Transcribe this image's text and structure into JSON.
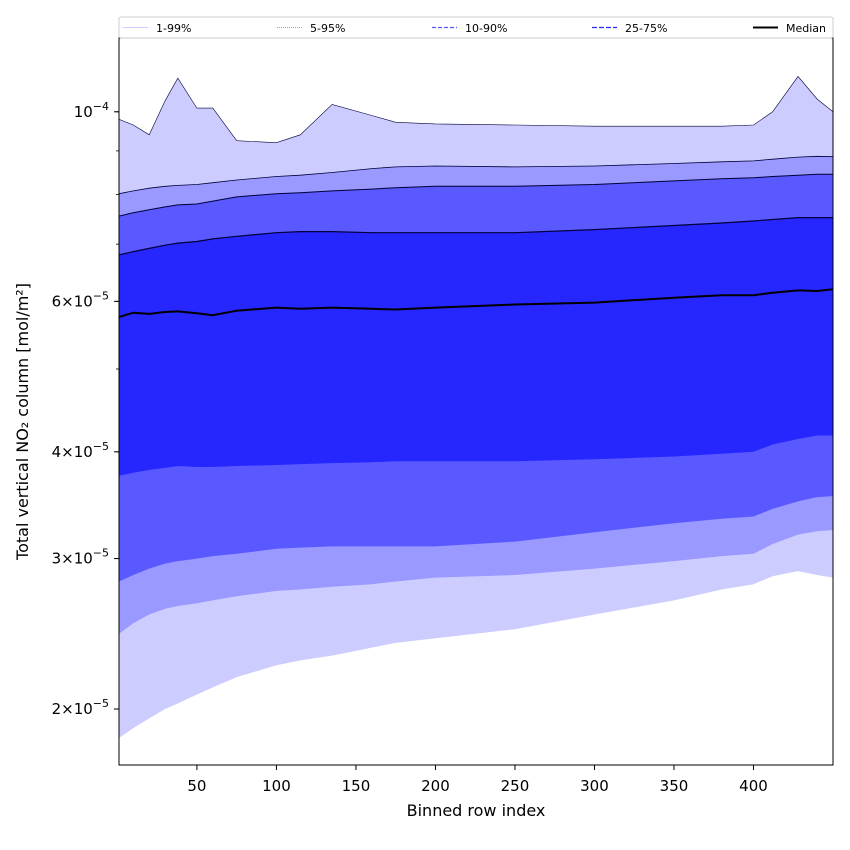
{
  "chart_data": {
    "type": "area",
    "xlabel": "Binned row index",
    "ylabel": "Total vertical NO₂ column [mol/m²]",
    "yscale": "log",
    "xlim": [
      1,
      450
    ],
    "ylim": [
      1.72e-05,
      0.000122
    ],
    "x_ticks": [
      50,
      100,
      150,
      200,
      250,
      300,
      350,
      400
    ],
    "y_ticks": [
      {
        "value": 0.0001,
        "mant": "",
        "exp": "−4"
      },
      {
        "value": 6e-05,
        "mant": "6",
        "exp": "−5"
      },
      {
        "value": 4e-05,
        "mant": "4",
        "exp": "−5"
      },
      {
        "value": 3e-05,
        "mant": "3",
        "exp": "−5"
      },
      {
        "value": 2e-05,
        "mant": "2",
        "exp": "−5"
      }
    ],
    "legend": {
      "placement": "top",
      "entries": [
        "1-99%",
        "5-95%",
        "10-90%",
        "25-75%",
        "Median"
      ]
    },
    "x": [
      1,
      10,
      20,
      30,
      38,
      50,
      60,
      75,
      100,
      115,
      135,
      160,
      175,
      200,
      250,
      300,
      350,
      380,
      400,
      412,
      428,
      440,
      450
    ],
    "series": [
      {
        "name": "Median",
        "values": [
          5.75e-05,
          5.82e-05,
          5.8e-05,
          5.83e-05,
          5.84e-05,
          5.81e-05,
          5.78e-05,
          5.85e-05,
          5.9e-05,
          5.88e-05,
          5.9e-05,
          5.88e-05,
          5.87e-05,
          5.9e-05,
          5.95e-05,
          5.98e-05,
          6.06e-05,
          6.1e-05,
          6.1e-05,
          6.14e-05,
          6.18e-05,
          6.17e-05,
          6.2e-05
        ]
      },
      {
        "name": "25-75%",
        "lower": [
          3.75e-05,
          3.78e-05,
          3.81e-05,
          3.83e-05,
          3.85e-05,
          3.84e-05,
          3.84e-05,
          3.85e-05,
          3.86e-05,
          3.87e-05,
          3.88e-05,
          3.89e-05,
          3.9e-05,
          3.9e-05,
          3.9e-05,
          3.92e-05,
          3.95e-05,
          3.98e-05,
          4e-05,
          4.08e-05,
          4.14e-05,
          4.18e-05,
          4.18e-05
        ],
        "upper": [
          6.8e-05,
          6.86e-05,
          6.92e-05,
          6.98e-05,
          7.02e-05,
          7.05e-05,
          7.1e-05,
          7.15e-05,
          7.22e-05,
          7.24e-05,
          7.24e-05,
          7.22e-05,
          7.22e-05,
          7.22e-05,
          7.22e-05,
          7.28e-05,
          7.36e-05,
          7.41e-05,
          7.45e-05,
          7.48e-05,
          7.52e-05,
          7.52e-05,
          7.52e-05
        ]
      },
      {
        "name": "10-90%",
        "lower": [
          2.82e-05,
          2.87e-05,
          2.92e-05,
          2.96e-05,
          2.98e-05,
          3e-05,
          3.02e-05,
          3.04e-05,
          3.08e-05,
          3.09e-05,
          3.1e-05,
          3.1e-05,
          3.1e-05,
          3.1e-05,
          3.14e-05,
          3.22e-05,
          3.3e-05,
          3.34e-05,
          3.36e-05,
          3.43e-05,
          3.5e-05,
          3.54e-05,
          3.55e-05
        ],
        "upper": [
          7.55e-05,
          7.62e-05,
          7.68e-05,
          7.74e-05,
          7.78e-05,
          7.8e-05,
          7.86e-05,
          7.95e-05,
          8.02e-05,
          8.04e-05,
          8.08e-05,
          8.12e-05,
          8.15e-05,
          8.18e-05,
          8.18e-05,
          8.22e-05,
          8.3e-05,
          8.35e-05,
          8.37e-05,
          8.4e-05,
          8.43e-05,
          8.45e-05,
          8.45e-05
        ]
      },
      {
        "name": "5-95%",
        "lower": [
          2.45e-05,
          2.52e-05,
          2.58e-05,
          2.62e-05,
          2.64e-05,
          2.66e-05,
          2.68e-05,
          2.71e-05,
          2.75e-05,
          2.76e-05,
          2.78e-05,
          2.8e-05,
          2.82e-05,
          2.85e-05,
          2.87e-05,
          2.92e-05,
          2.98e-05,
          3.02e-05,
          3.04e-05,
          3.12e-05,
          3.2e-05,
          3.23e-05,
          3.24e-05
        ],
        "upper": [
          8.02e-05,
          8.08e-05,
          8.14e-05,
          8.18e-05,
          8.2e-05,
          8.22e-05,
          8.26e-05,
          8.32e-05,
          8.4e-05,
          8.43e-05,
          8.49e-05,
          8.58e-05,
          8.62e-05,
          8.64e-05,
          8.62e-05,
          8.64e-05,
          8.7e-05,
          8.74e-05,
          8.76e-05,
          8.8e-05,
          8.85e-05,
          8.87e-05,
          8.86e-05
        ]
      },
      {
        "name": "1-99%",
        "lower": [
          1.85e-05,
          1.9e-05,
          1.95e-05,
          2e-05,
          2.03e-05,
          2.08e-05,
          2.12e-05,
          2.18e-05,
          2.25e-05,
          2.28e-05,
          2.31e-05,
          2.36e-05,
          2.39e-05,
          2.42e-05,
          2.48e-05,
          2.58e-05,
          2.68e-05,
          2.76e-05,
          2.8e-05,
          2.86e-05,
          2.9e-05,
          2.87e-05,
          2.85e-05
        ],
        "upper": [
          9.8e-05,
          9.65e-05,
          9.4e-05,
          0.000103,
          0.0001095,
          0.000101,
          0.000101,
          9.25e-05,
          9.2e-05,
          9.4e-05,
          0.000102,
          9.9e-05,
          9.72e-05,
          9.68e-05,
          9.65e-05,
          9.62e-05,
          9.62e-05,
          9.62e-05,
          9.65e-05,
          0.0001,
          0.00011,
          0.0001035,
          0.0001
        ]
      }
    ],
    "colors": {
      "band_1_99": "#ccccff",
      "band_5_95": "#9999ff",
      "band_10_90": "#5959ff",
      "band_25_75": "#2626ff",
      "median": "#000000",
      "frame": "#000000"
    }
  }
}
